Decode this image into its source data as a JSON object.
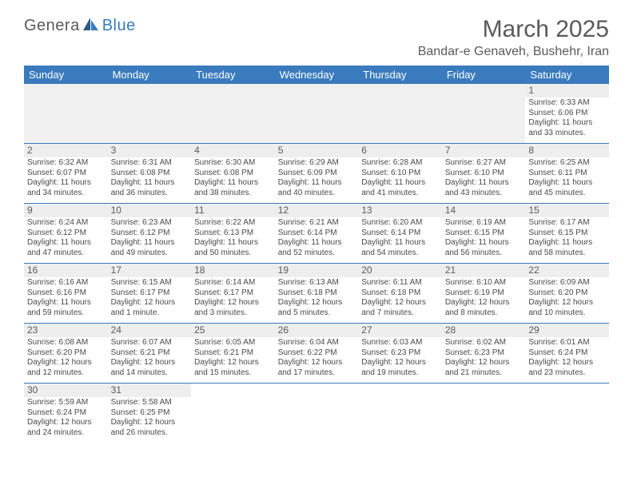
{
  "colors": {
    "header_bg": "#3a7bbd",
    "header_text": "#ffffff",
    "body_text": "#4a4a4a",
    "title_text": "#5a5a5a",
    "logo_gray": "#5a5a5a",
    "logo_blue": "#3a7bbd",
    "row_border": "#3a7bbd",
    "daynum_bg": "#eeeeee",
    "empty_bg": "#f0f0f0"
  },
  "logo": {
    "part1": "Genera",
    "part2": "Blue"
  },
  "title": "March 2025",
  "location": "Bandar-e Genaveh, Bushehr, Iran",
  "weekdays": [
    "Sunday",
    "Monday",
    "Tuesday",
    "Wednesday",
    "Thursday",
    "Friday",
    "Saturday"
  ],
  "weeks": [
    [
      null,
      null,
      null,
      null,
      null,
      null,
      {
        "n": "1",
        "sr": "6:33 AM",
        "ss": "6:06 PM",
        "dl": "11 hours and 33 minutes."
      }
    ],
    [
      {
        "n": "2",
        "sr": "6:32 AM",
        "ss": "6:07 PM",
        "dl": "11 hours and 34 minutes."
      },
      {
        "n": "3",
        "sr": "6:31 AM",
        "ss": "6:08 PM",
        "dl": "11 hours and 36 minutes."
      },
      {
        "n": "4",
        "sr": "6:30 AM",
        "ss": "6:08 PM",
        "dl": "11 hours and 38 minutes."
      },
      {
        "n": "5",
        "sr": "6:29 AM",
        "ss": "6:09 PM",
        "dl": "11 hours and 40 minutes."
      },
      {
        "n": "6",
        "sr": "6:28 AM",
        "ss": "6:10 PM",
        "dl": "11 hours and 41 minutes."
      },
      {
        "n": "7",
        "sr": "6:27 AM",
        "ss": "6:10 PM",
        "dl": "11 hours and 43 minutes."
      },
      {
        "n": "8",
        "sr": "6:25 AM",
        "ss": "6:11 PM",
        "dl": "11 hours and 45 minutes."
      }
    ],
    [
      {
        "n": "9",
        "sr": "6:24 AM",
        "ss": "6:12 PM",
        "dl": "11 hours and 47 minutes."
      },
      {
        "n": "10",
        "sr": "6:23 AM",
        "ss": "6:12 PM",
        "dl": "11 hours and 49 minutes."
      },
      {
        "n": "11",
        "sr": "6:22 AM",
        "ss": "6:13 PM",
        "dl": "11 hours and 50 minutes."
      },
      {
        "n": "12",
        "sr": "6:21 AM",
        "ss": "6:14 PM",
        "dl": "11 hours and 52 minutes."
      },
      {
        "n": "13",
        "sr": "6:20 AM",
        "ss": "6:14 PM",
        "dl": "11 hours and 54 minutes."
      },
      {
        "n": "14",
        "sr": "6:19 AM",
        "ss": "6:15 PM",
        "dl": "11 hours and 56 minutes."
      },
      {
        "n": "15",
        "sr": "6:17 AM",
        "ss": "6:15 PM",
        "dl": "11 hours and 58 minutes."
      }
    ],
    [
      {
        "n": "16",
        "sr": "6:16 AM",
        "ss": "6:16 PM",
        "dl": "11 hours and 59 minutes."
      },
      {
        "n": "17",
        "sr": "6:15 AM",
        "ss": "6:17 PM",
        "dl": "12 hours and 1 minute."
      },
      {
        "n": "18",
        "sr": "6:14 AM",
        "ss": "6:17 PM",
        "dl": "12 hours and 3 minutes."
      },
      {
        "n": "19",
        "sr": "6:13 AM",
        "ss": "6:18 PM",
        "dl": "12 hours and 5 minutes."
      },
      {
        "n": "20",
        "sr": "6:11 AM",
        "ss": "6:18 PM",
        "dl": "12 hours and 7 minutes."
      },
      {
        "n": "21",
        "sr": "6:10 AM",
        "ss": "6:19 PM",
        "dl": "12 hours and 8 minutes."
      },
      {
        "n": "22",
        "sr": "6:09 AM",
        "ss": "6:20 PM",
        "dl": "12 hours and 10 minutes."
      }
    ],
    [
      {
        "n": "23",
        "sr": "6:08 AM",
        "ss": "6:20 PM",
        "dl": "12 hours and 12 minutes."
      },
      {
        "n": "24",
        "sr": "6:07 AM",
        "ss": "6:21 PM",
        "dl": "12 hours and 14 minutes."
      },
      {
        "n": "25",
        "sr": "6:05 AM",
        "ss": "6:21 PM",
        "dl": "12 hours and 15 minutes."
      },
      {
        "n": "26",
        "sr": "6:04 AM",
        "ss": "6:22 PM",
        "dl": "12 hours and 17 minutes."
      },
      {
        "n": "27",
        "sr": "6:03 AM",
        "ss": "6:23 PM",
        "dl": "12 hours and 19 minutes."
      },
      {
        "n": "28",
        "sr": "6:02 AM",
        "ss": "6:23 PM",
        "dl": "12 hours and 21 minutes."
      },
      {
        "n": "29",
        "sr": "6:01 AM",
        "ss": "6:24 PM",
        "dl": "12 hours and 23 minutes."
      }
    ],
    [
      {
        "n": "30",
        "sr": "5:59 AM",
        "ss": "6:24 PM",
        "dl": "12 hours and 24 minutes."
      },
      {
        "n": "31",
        "sr": "5:58 AM",
        "ss": "6:25 PM",
        "dl": "12 hours and 26 minutes."
      },
      null,
      null,
      null,
      null,
      null
    ]
  ],
  "labels": {
    "sunrise": "Sunrise:",
    "sunset": "Sunset:",
    "daylight": "Daylight:"
  }
}
